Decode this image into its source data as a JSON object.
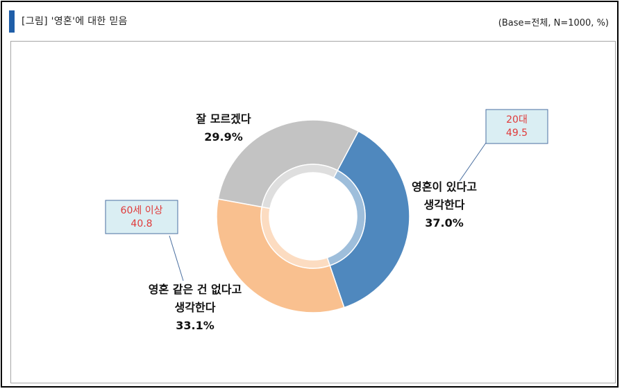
{
  "header": {
    "title": "[그림] '영혼'에 대한 믿음",
    "base": "(Base=전체,  N=1000,  %)"
  },
  "colors": {
    "title_bar": "#1f5ea8",
    "series": [
      "#4f88be",
      "#f9c08f",
      "#c3c3c3"
    ],
    "callout_fill": "#daeef3",
    "callout_text": "#e03a3a"
  },
  "chart_data": {
    "type": "pie",
    "variant": "donut",
    "title": "",
    "categories": [
      "영혼이 있다고 생각한다",
      "영혼 같은 건 없다고 생각한다",
      "잘 모르겠다"
    ],
    "values": [
      37.0,
      33.1,
      29.9
    ],
    "unit": "%",
    "labels": [
      {
        "lines": [
          "영혼이 있다고",
          "생각한다",
          "37.0%"
        ]
      },
      {
        "lines": [
          "영혼 같은 건 없다고",
          "생각한다",
          "33.1%"
        ]
      },
      {
        "lines": [
          "잘 모르겠다",
          "29.9%"
        ]
      }
    ],
    "annotations": [
      {
        "lines": [
          "20대",
          "49.5"
        ],
        "target": "영혼이 있다고 생각한다"
      },
      {
        "lines": [
          "60세 이상",
          "40.8"
        ],
        "target": "영혼 같은 건 없다고 생각한다"
      }
    ]
  }
}
